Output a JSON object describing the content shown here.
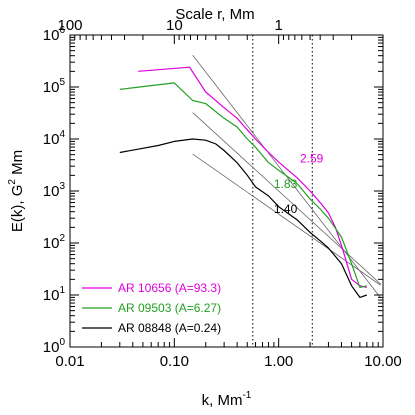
{
  "chart_data": {
    "type": "line",
    "title": "",
    "xlabel": {
      "base": "k, Mm",
      "sup": "-1"
    },
    "ylabel": {
      "base": "E(k), G",
      "sup": "2",
      "tail": " Mm"
    },
    "top_axis_label": "Scale r,  Mm",
    "x_scale": "log",
    "y_scale": "log",
    "xlim": [
      0.01,
      10
    ],
    "ylim": [
      1,
      1000000
    ],
    "x_ticks": [
      {
        "value": 0.01,
        "label": "0.01"
      },
      {
        "value": 0.1,
        "label": "0.10"
      },
      {
        "value": 1,
        "label": "1.00"
      },
      {
        "value": 10,
        "label": "10.00"
      }
    ],
    "y_ticks": [
      {
        "value": 1,
        "exp": "0"
      },
      {
        "value": 10,
        "exp": "1"
      },
      {
        "value": 100,
        "exp": "2"
      },
      {
        "value": 1000,
        "exp": "3"
      },
      {
        "value": 10000,
        "exp": "4"
      },
      {
        "value": 100000,
        "exp": "5"
      },
      {
        "value": 1000000,
        "exp": "6"
      }
    ],
    "y_tick_base": "10",
    "top_ticks": [
      {
        "r": 100,
        "label": "100"
      },
      {
        "r": 10,
        "label": "10"
      },
      {
        "r": 1,
        "label": "1"
      }
    ],
    "vlines_k": [
      0.565,
      2.1
    ],
    "series": [
      {
        "name": "AR 10656 (A=93.3)",
        "color": "#e000e0",
        "x": [
          0.045,
          0.14,
          0.2,
          0.3,
          0.4,
          0.5,
          0.6,
          0.8,
          1.0,
          1.5,
          2.0,
          2.5,
          3.0,
          3.5,
          4.0,
          5.0,
          6.0,
          7.0
        ],
        "y": [
          200000,
          240000,
          80000,
          40000,
          25000,
          15000,
          10000,
          5500,
          3600,
          1800,
          1000,
          600,
          380,
          200,
          90,
          20,
          15,
          14
        ]
      },
      {
        "name": "AR 09503 (A=6.27)",
        "color": "#22a022",
        "x": [
          0.03,
          0.1,
          0.15,
          0.2,
          0.3,
          0.4,
          0.5,
          0.6,
          0.8,
          1.0,
          1.5,
          2.0,
          2.5,
          3.0,
          4.0,
          5.0,
          6.0,
          7.0
        ],
        "y": [
          90000,
          120000,
          55000,
          48000,
          25000,
          17000,
          10000,
          7000,
          3500,
          2500,
          1400,
          700,
          450,
          300,
          130,
          40,
          14,
          15
        ]
      },
      {
        "name": "AR 08848 (A=0.24)",
        "color": "#000000",
        "x": [
          0.03,
          0.07,
          0.1,
          0.15,
          0.2,
          0.25,
          0.3,
          0.4,
          0.5,
          0.6,
          0.8,
          1.0,
          1.5,
          2.0,
          2.5,
          3.0,
          4.0,
          5.0,
          6.0,
          7.0
        ],
        "y": [
          5500,
          7500,
          9000,
          10000,
          9500,
          8000,
          6000,
          3500,
          2000,
          1200,
          800,
          500,
          280,
          160,
          110,
          80,
          40,
          15,
          9,
          10
        ]
      }
    ],
    "fit_lines": [
      {
        "slope": 2.59,
        "label": "2.59",
        "color": "#e000e0",
        "x_range": [
          0.15,
          9.5
        ],
        "anchor": [
          1.0,
          3000
        ],
        "label_at": [
          1.6,
          3500
        ]
      },
      {
        "slope": 1.83,
        "label": "1.83",
        "color": "#22a022",
        "x_range": [
          0.15,
          9.5
        ],
        "anchor": [
          1.0,
          1000
        ],
        "label_at": [
          0.9,
          1150
        ]
      },
      {
        "slope": 1.4,
        "label": "1.40",
        "color": "#000000",
        "x_range": [
          0.15,
          9.5
        ],
        "anchor": [
          1.0,
          360
        ],
        "label_at": [
          0.9,
          380
        ]
      }
    ],
    "legend_position": "bottom-left"
  }
}
